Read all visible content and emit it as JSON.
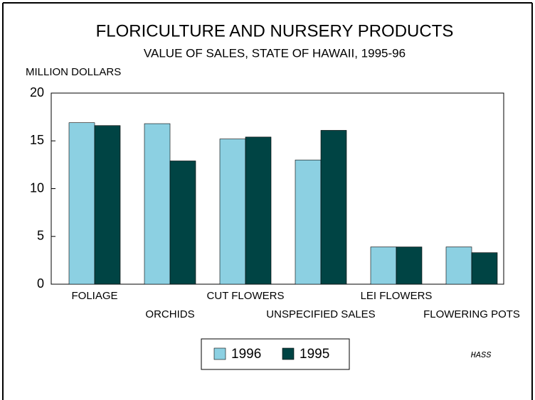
{
  "chart_data": {
    "type": "bar",
    "title": "FLORICULTURE AND NURSERY PRODUCTS",
    "subtitle": "VALUE OF SALES, STATE OF HAWAII, 1995-96",
    "y_label": "MILLION DOLLARS",
    "source": "HASS",
    "categories": [
      "FOLIAGE",
      "ORCHIDS",
      "CUT FLOWERS",
      "UNSPECIFIED SALES",
      "LEI FLOWERS",
      "FLOWERING POTS"
    ],
    "series": [
      {
        "name": "1996",
        "color": "#8cd0e2",
        "values": [
          16.9,
          16.8,
          15.2,
          13.0,
          3.9,
          3.9
        ]
      },
      {
        "name": "1995",
        "color": "#004444",
        "values": [
          16.6,
          12.9,
          15.4,
          16.1,
          3.9,
          3.3
        ]
      }
    ],
    "ylim": [
      0,
      20
    ],
    "yticks": [
      0,
      5,
      10,
      15,
      20
    ],
    "grid": false
  }
}
